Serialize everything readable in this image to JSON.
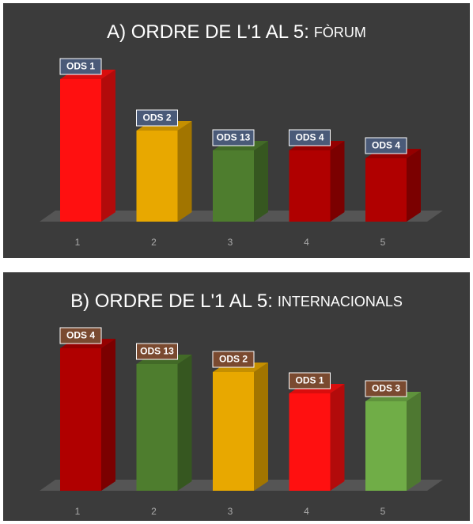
{
  "chart_data": [
    {
      "type": "bar3d",
      "title": "A) ORDRE DE L'1 AL 5:",
      "title_small": "FÒRUM",
      "categories": [
        "1",
        "2",
        "3",
        "4",
        "5"
      ],
      "values": [
        180,
        115,
        90,
        90,
        80
      ],
      "labels": [
        "ODS 1",
        "ODS 2",
        "ODS 13",
        "ODS 4",
        "ODS 4"
      ],
      "colors": [
        "#ff1010",
        "#e8a800",
        "#4e7d2e",
        "#b00000",
        "#b00000"
      ],
      "label_color": "#4a5a78"
    },
    {
      "type": "bar3d",
      "title": "B) ORDRE DE L'1 AL 5:",
      "title_small": "INTERNACIONALS",
      "categories": [
        "1",
        "2",
        "3",
        "4",
        "5"
      ],
      "values": [
        180,
        160,
        150,
        123,
        113
      ],
      "labels": [
        "ODS 4",
        "ODS 13",
        "ODS 2",
        "ODS 1",
        "ODS 3"
      ],
      "colors": [
        "#b00000",
        "#4e7d2e",
        "#e8a800",
        "#ff1010",
        "#70ad47"
      ],
      "label_color": "#7a4a30"
    }
  ]
}
